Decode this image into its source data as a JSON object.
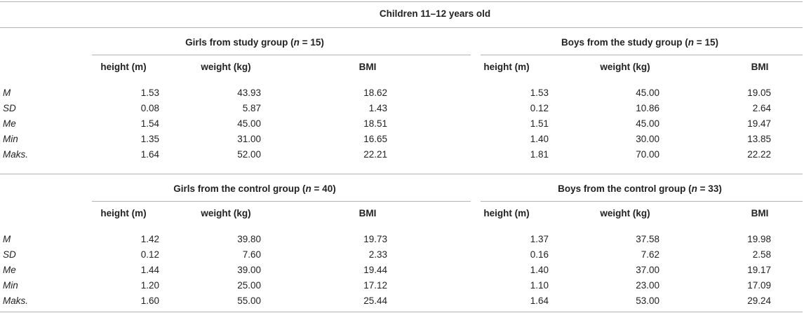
{
  "title": "Children 11–12 years old",
  "columns": [
    "height (m)",
    "weight (kg)",
    "BMI"
  ],
  "sections": [
    {
      "left": {
        "title_pre": "Girls from study group (",
        "title_n": "n",
        "title_post": " = 15)",
        "rows": [
          [
            "1.53",
            "43.93",
            "18.62"
          ],
          [
            "0.08",
            "5.87",
            "1.43"
          ],
          [
            "1.54",
            "45.00",
            "18.51"
          ],
          [
            "1.35",
            "31.00",
            "16.65"
          ],
          [
            "1.64",
            "52.00",
            "22.21"
          ]
        ]
      },
      "right": {
        "title_pre": "Boys from the study group (",
        "title_n": "n",
        "title_post": " = 15)",
        "rows": [
          [
            "1.53",
            "45.00",
            "19.05"
          ],
          [
            "0.12",
            "10.86",
            "2.64"
          ],
          [
            "1.51",
            "45.00",
            "19.47"
          ],
          [
            "1.40",
            "30.00",
            "13.85"
          ],
          [
            "1.81",
            "70.00",
            "22.22"
          ]
        ]
      }
    },
    {
      "left": {
        "title_pre": "Girls from the control group (",
        "title_n": "n",
        "title_post": " = 40)",
        "rows": [
          [
            "1.42",
            "39.80",
            "19.73"
          ],
          [
            "0.12",
            "7.60",
            "2.33"
          ],
          [
            "1.44",
            "39.00",
            "19.44"
          ],
          [
            "1.20",
            "25.00",
            "17.12"
          ],
          [
            "1.60",
            "55.00",
            "25.44"
          ]
        ]
      },
      "right": {
        "title_pre": "Boys from the control group (",
        "title_n": "n",
        "title_post": " = 33)",
        "rows": [
          [
            "1.37",
            "37.58",
            "19.98"
          ],
          [
            "0.16",
            "7.62",
            "2.58"
          ],
          [
            "1.40",
            "37.00",
            "19.17"
          ],
          [
            "1.10",
            "23.00",
            "17.09"
          ],
          [
            "1.64",
            "53.00",
            "29.24"
          ]
        ]
      }
    }
  ],
  "row_labels": [
    "M",
    "SD",
    "Me",
    "Min",
    "Maks."
  ]
}
